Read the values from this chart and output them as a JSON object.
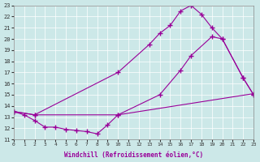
{
  "xlabel": "Windchill (Refroidissement éolien,°C)",
  "bg_color": "#cce8e8",
  "line_color": "#990099",
  "grid_color": "#ffffff",
  "xlim": [
    0,
    23
  ],
  "ylim": [
    11,
    23
  ],
  "xticks": [
    0,
    1,
    2,
    3,
    4,
    5,
    6,
    7,
    8,
    9,
    10,
    11,
    12,
    13,
    14,
    15,
    16,
    17,
    18,
    19,
    20,
    21,
    22,
    23
  ],
  "yticks": [
    11,
    12,
    13,
    14,
    15,
    16,
    17,
    18,
    19,
    20,
    21,
    22,
    23
  ],
  "line1_x": [
    0,
    2,
    10,
    23
  ],
  "line1_y": [
    13.5,
    13.2,
    13.2,
    15.1
  ],
  "line2_x": [
    0,
    1,
    2,
    3,
    4,
    5,
    6,
    7,
    8,
    9,
    10,
    14,
    16,
    17,
    19,
    20,
    22,
    23
  ],
  "line2_y": [
    13.5,
    13.2,
    12.7,
    12.1,
    12.1,
    11.9,
    11.8,
    11.7,
    11.5,
    12.3,
    13.2,
    15.0,
    17.2,
    18.5,
    20.2,
    20.0,
    16.5,
    15.0
  ],
  "line3_x": [
    0,
    2,
    10,
    13,
    14,
    15,
    16,
    17,
    18,
    19,
    20,
    22,
    23
  ],
  "line3_y": [
    13.5,
    13.2,
    17.0,
    19.5,
    20.5,
    21.2,
    22.5,
    23.0,
    22.2,
    21.0,
    20.0,
    16.5,
    15.0
  ]
}
